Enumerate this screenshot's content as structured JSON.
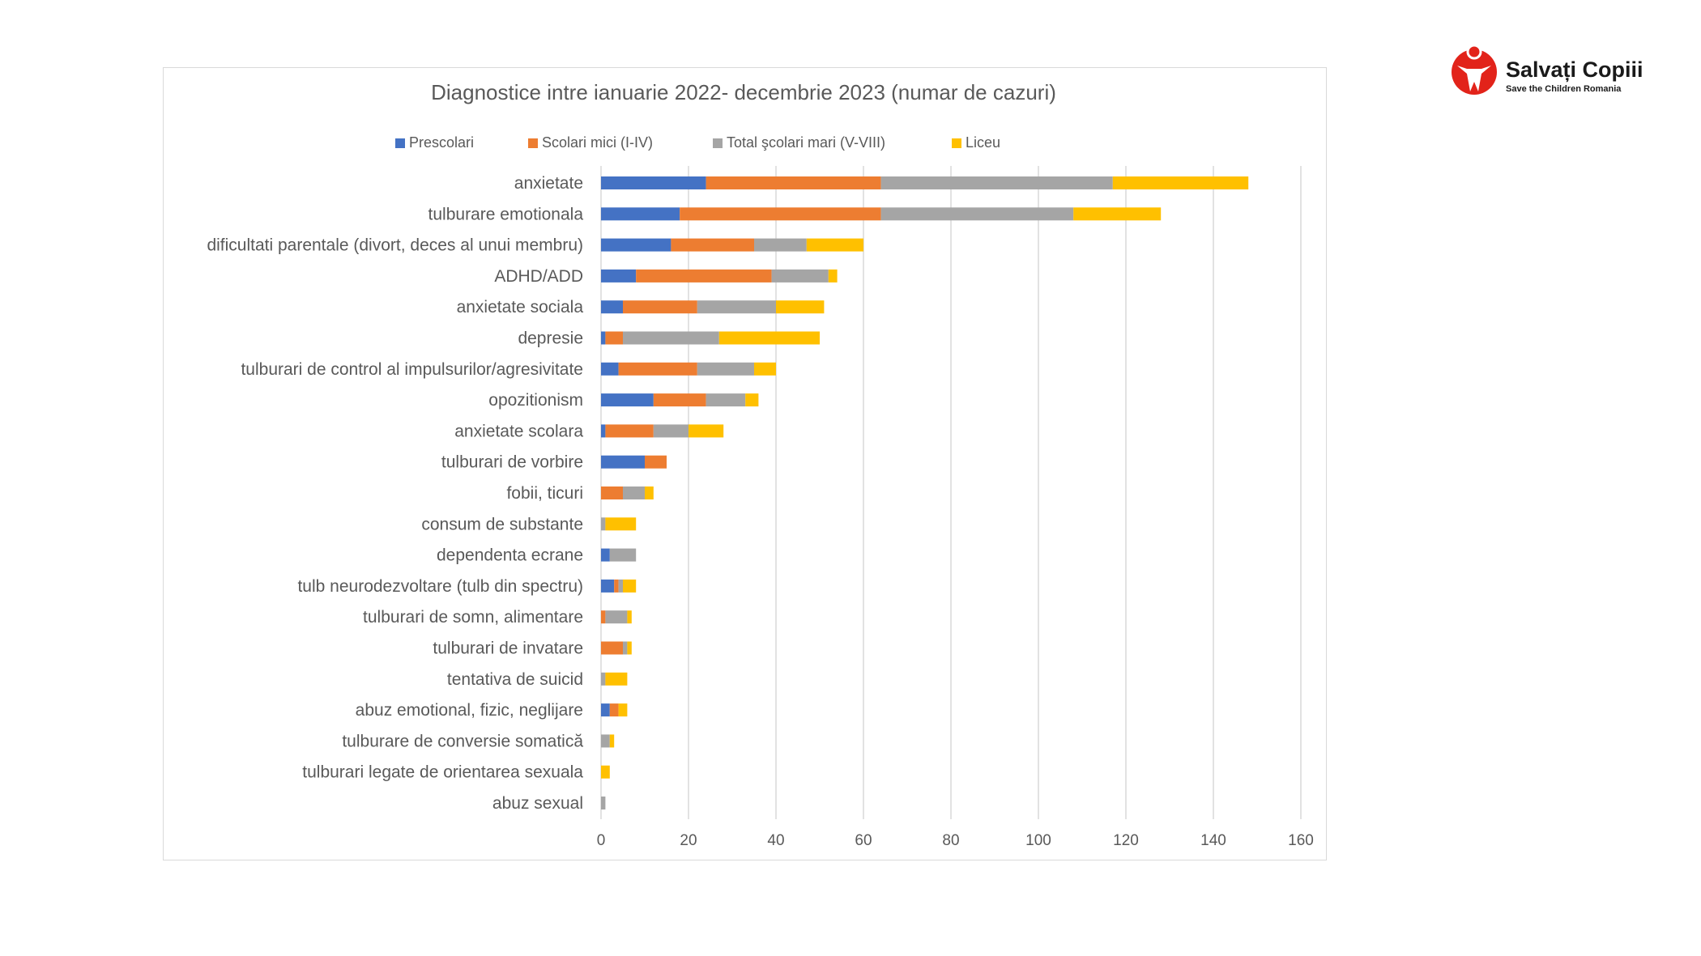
{
  "logo": {
    "name": "Salvați Copiii",
    "subtitle": "Save the Children Romania",
    "color": "#e2231a"
  },
  "chart_data": {
    "type": "bar",
    "orientation": "horizontal",
    "stacked": true,
    "title": "Diagnostice intre ianuarie 2022- decembrie 2023 (numar de cazuri)",
    "xlabel": "",
    "ylabel": "",
    "xlim": [
      0,
      160
    ],
    "xticks": [
      0,
      20,
      40,
      60,
      80,
      100,
      120,
      140,
      160
    ],
    "grid": "vertical",
    "legend_position": "top",
    "categories": [
      "anxietate",
      "tulburare emotionala",
      "dificultati parentale (divort, deces al unui membru)",
      "ADHD/ADD",
      "anxietate sociala",
      "depresie",
      "tulburari de control al impulsurilor/agresivitate",
      "opozitionism",
      "anxietate scolara",
      "tulburari de vorbire",
      "fobii, ticuri",
      "consum de substante",
      "dependenta ecrane",
      "tulb neurodezvoltare (tulb din spectru)",
      "tulburari de somn, alimentare",
      "tulburari de invatare",
      "tentativa de suicid",
      "abuz emotional, fizic, neglijare",
      "tulburare de conversie somatică",
      "tulburari legate de orientarea sexuala",
      "abuz sexual"
    ],
    "series": [
      {
        "name": "Prescolari",
        "color": "#4472c4",
        "values": [
          24,
          18,
          16,
          8,
          5,
          1,
          4,
          12,
          1,
          10,
          0,
          0,
          2,
          3,
          0,
          0,
          0,
          2,
          0,
          0,
          0
        ]
      },
      {
        "name": "Scolari mici (I-IV)",
        "color": "#ed7d31",
        "values": [
          40,
          46,
          19,
          31,
          17,
          4,
          18,
          12,
          11,
          5,
          5,
          0,
          0,
          1,
          1,
          5,
          0,
          2,
          0,
          0,
          0
        ]
      },
      {
        "name": "Total şcolari mari  (V-VIII)",
        "color": "#a5a5a5",
        "values": [
          53,
          44,
          12,
          13,
          18,
          22,
          13,
          9,
          8,
          0,
          5,
          1,
          6,
          1,
          5,
          1,
          1,
          0,
          2,
          0,
          1
        ]
      },
      {
        "name": "Liceu",
        "color": "#ffc000",
        "values": [
          31,
          20,
          13,
          2,
          11,
          23,
          5,
          3,
          8,
          0,
          2,
          7,
          0,
          3,
          1,
          1,
          5,
          2,
          1,
          2,
          0
        ]
      }
    ]
  }
}
